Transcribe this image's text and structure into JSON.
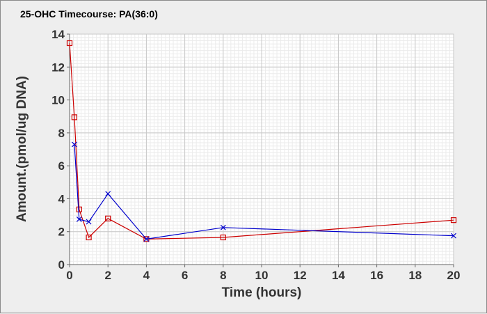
{
  "chart_data": {
    "type": "line",
    "title": "25-OHC Timecourse: PA(36:0)",
    "xlabel": "Time (hours)",
    "ylabel": "Amount.(pmol/ug DNA)",
    "xlim": [
      0,
      20
    ],
    "ylim": [
      0,
      14
    ],
    "xticks": [
      0,
      2,
      4,
      6,
      8,
      10,
      12,
      14,
      16,
      18,
      20
    ],
    "yticks": [
      0,
      2,
      4,
      6,
      8,
      10,
      12,
      14
    ],
    "grid": true,
    "legend": "none",
    "series": [
      {
        "color": "#cc0000",
        "marker": "square",
        "x": [
          0,
          0.25,
          0.5,
          1,
          2,
          4,
          8,
          20
        ],
        "values": [
          13.45,
          8.95,
          3.35,
          1.65,
          2.8,
          1.55,
          1.65,
          2.7
        ]
      },
      {
        "color": "#0000cc",
        "marker": "x",
        "x": [
          0.25,
          0.5,
          1,
          2,
          4,
          8,
          20
        ],
        "values": [
          7.3,
          2.75,
          2.6,
          4.3,
          1.55,
          2.25,
          1.75
        ]
      }
    ]
  }
}
